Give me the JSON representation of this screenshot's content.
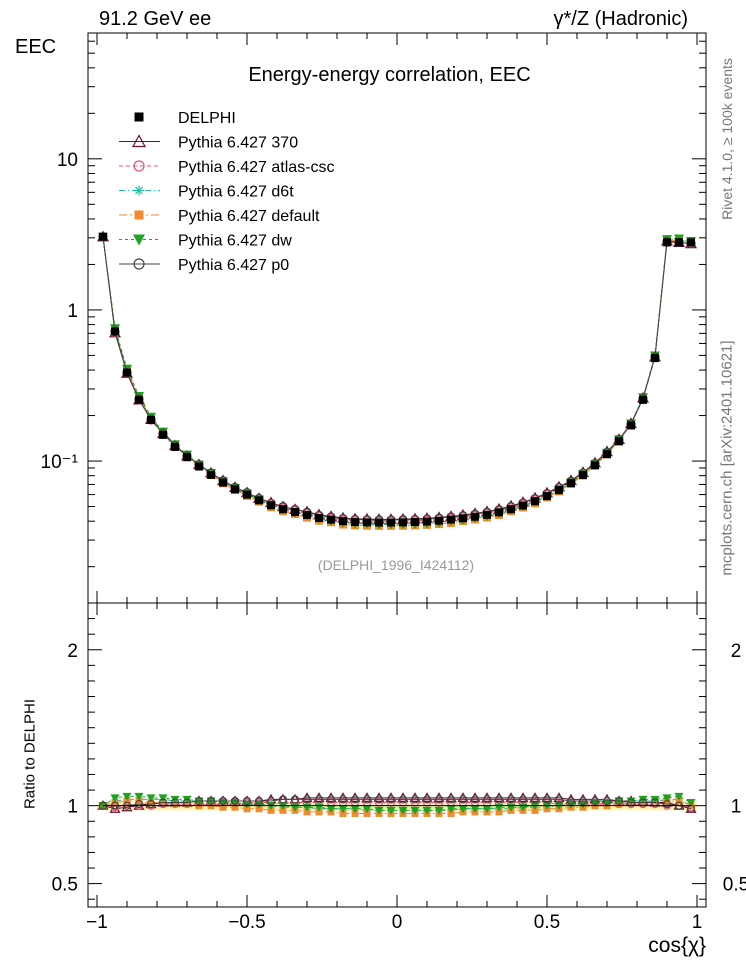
{
  "header": {
    "energy": "91.2 GeV ee",
    "process": "γ*/Z (Hadronic)"
  },
  "side_labels": {
    "rivet": "Rivet 4.1.0, ≥ 100k events",
    "mcplots": "mcplots.cern.ch [arXiv:2401.10621]"
  },
  "chart_data": {
    "type": "line",
    "title": "Energy-energy correlation, EEC",
    "analysis_id": "(DELPHI_1996_I424112)",
    "xlabel": "cos{χ}",
    "ylabel": "EEC",
    "ratio_ylabel": "Ratio to DELPHI",
    "xlim": [
      -1.03,
      1.03
    ],
    "ylim": [
      0.0115,
      68
    ],
    "yscale": "log",
    "ratio_ylim": [
      0.35,
      2.3
    ],
    "x_ticks": [
      -1,
      -0.5,
      0,
      0.5,
      1
    ],
    "x_tick_labels": [
      "−1",
      "−0.5",
      "0",
      "0.5",
      "1"
    ],
    "y_ticks": [
      0.1,
      1,
      10
    ],
    "y_tick_labels": [
      "10⁻¹",
      "1",
      "10"
    ],
    "ratio_y_ticks": [
      0.5,
      1,
      2
    ],
    "ratio_y_tick_labels": [
      "0.5",
      "1",
      "2"
    ],
    "x": [
      -0.98,
      -0.94,
      -0.9,
      -0.86,
      -0.82,
      -0.78,
      -0.74,
      -0.7,
      -0.66,
      -0.62,
      -0.58,
      -0.54,
      -0.5,
      -0.46,
      -0.42,
      -0.38,
      -0.34,
      -0.3,
      -0.26,
      -0.22,
      -0.18,
      -0.14,
      -0.1,
      -0.06,
      -0.02,
      0.02,
      0.06,
      0.1,
      0.14,
      0.18,
      0.22,
      0.26,
      0.3,
      0.34,
      0.38,
      0.42,
      0.46,
      0.5,
      0.54,
      0.58,
      0.62,
      0.66,
      0.7,
      0.74,
      0.78,
      0.82,
      0.86,
      0.9,
      0.94,
      0.98
    ],
    "reference": {
      "name": "DELPHI",
      "values": [
        3.05,
        0.72,
        0.385,
        0.254,
        0.187,
        0.149,
        0.124,
        0.106,
        0.092,
        0.081,
        0.072,
        0.065,
        0.06,
        0.055,
        0.051,
        0.048,
        0.046,
        0.044,
        0.042,
        0.041,
        0.04,
        0.0395,
        0.0393,
        0.0392,
        0.0392,
        0.0393,
        0.0395,
        0.0398,
        0.0403,
        0.041,
        0.0418,
        0.0428,
        0.0441,
        0.0458,
        0.048,
        0.0508,
        0.0542,
        0.0586,
        0.0642,
        0.0714,
        0.0809,
        0.0936,
        0.111,
        0.135,
        0.172,
        0.254,
        0.48,
        2.8,
        2.8,
        2.8
      ]
    },
    "series": [
      {
        "name": "Pythia 6.427 370",
        "color": "#6b0f2a",
        "marker": "triangle-open",
        "dash": "solid",
        "ratio": [
          1.0,
          0.98,
          0.99,
          1.0,
          1.01,
          1.02,
          1.02,
          1.02,
          1.03,
          1.03,
          1.03,
          1.03,
          1.03,
          1.03,
          1.04,
          1.04,
          1.04,
          1.05,
          1.05,
          1.05,
          1.05,
          1.05,
          1.05,
          1.05,
          1.05,
          1.05,
          1.05,
          1.05,
          1.05,
          1.05,
          1.05,
          1.05,
          1.05,
          1.05,
          1.05,
          1.05,
          1.05,
          1.05,
          1.05,
          1.04,
          1.04,
          1.04,
          1.04,
          1.03,
          1.03,
          1.03,
          1.02,
          1.02,
          1.0,
          0.98
        ]
      },
      {
        "name": "Pythia 6.427 atlas-csc",
        "color": "#e8507a",
        "marker": "circle-open",
        "dash": "4,3",
        "ratio": [
          1.0,
          0.99,
          1.0,
          1.0,
          1.0,
          1.01,
          1.01,
          1.01,
          1.01,
          1.01,
          1.01,
          1.01,
          1.02,
          1.02,
          1.02,
          1.02,
          1.02,
          1.02,
          1.02,
          1.02,
          1.02,
          1.02,
          1.02,
          1.02,
          1.02,
          1.02,
          1.02,
          1.02,
          1.02,
          1.02,
          1.02,
          1.02,
          1.02,
          1.02,
          1.02,
          1.02,
          1.02,
          1.02,
          1.01,
          1.01,
          1.01,
          1.01,
          1.01,
          1.01,
          1.01,
          1.01,
          1.01,
          1.0,
          1.0,
          0.99
        ]
      },
      {
        "name": "Pythia 6.427 d6t",
        "color": "#1fbfa0",
        "marker": "star",
        "dash": "6,3,1,3",
        "ratio": [
          1.0,
          1.03,
          1.04,
          1.04,
          1.04,
          1.04,
          1.03,
          1.03,
          1.03,
          1.02,
          1.02,
          1.01,
          1.01,
          1.0,
          1.0,
          0.99,
          0.99,
          0.99,
          0.98,
          0.98,
          0.98,
          0.98,
          0.97,
          0.97,
          0.97,
          0.97,
          0.97,
          0.97,
          0.97,
          0.97,
          0.98,
          0.98,
          0.98,
          0.98,
          0.98,
          0.99,
          0.99,
          0.99,
          1.0,
          1.0,
          1.01,
          1.01,
          1.02,
          1.02,
          1.03,
          1.03,
          1.03,
          1.04,
          1.04,
          1.0
        ]
      },
      {
        "name": "Pythia 6.427 default",
        "color": "#f28a2e",
        "marker": "square",
        "dash": "8,3,2,3",
        "ratio": [
          1.0,
          1.02,
          1.03,
          1.03,
          1.02,
          1.02,
          1.01,
          1.01,
          1.0,
          1.0,
          0.99,
          0.99,
          0.98,
          0.98,
          0.97,
          0.97,
          0.97,
          0.96,
          0.96,
          0.96,
          0.95,
          0.95,
          0.95,
          0.95,
          0.95,
          0.95,
          0.95,
          0.95,
          0.95,
          0.95,
          0.96,
          0.96,
          0.96,
          0.96,
          0.97,
          0.97,
          0.97,
          0.98,
          0.98,
          0.99,
          0.99,
          1.0,
          1.0,
          1.01,
          1.02,
          1.02,
          1.03,
          1.03,
          1.03,
          1.0
        ]
      },
      {
        "name": "Pythia 6.427 dw",
        "color": "#1fa31f",
        "marker": "triangle-down",
        "dash": "3,3",
        "ratio": [
          1.0,
          1.05,
          1.06,
          1.06,
          1.05,
          1.05,
          1.04,
          1.04,
          1.03,
          1.03,
          1.02,
          1.02,
          1.01,
          1.01,
          1.0,
          1.0,
          0.99,
          0.99,
          0.99,
          0.98,
          0.98,
          0.98,
          0.98,
          0.97,
          0.97,
          0.97,
          0.97,
          0.97,
          0.97,
          0.98,
          0.98,
          0.98,
          0.98,
          0.99,
          0.99,
          0.99,
          1.0,
          1.0,
          1.0,
          1.01,
          1.01,
          1.02,
          1.02,
          1.03,
          1.03,
          1.04,
          1.04,
          1.05,
          1.06,
          1.02
        ]
      },
      {
        "name": "Pythia 6.427 p0",
        "color": "#444444",
        "marker": "circle-open",
        "dash": "solid",
        "ratio": [
          1.0,
          1.0,
          1.0,
          1.01,
          1.01,
          1.02,
          1.02,
          1.02,
          1.03,
          1.03,
          1.03,
          1.03,
          1.03,
          1.03,
          1.03,
          1.04,
          1.04,
          1.04,
          1.04,
          1.04,
          1.04,
          1.04,
          1.04,
          1.04,
          1.04,
          1.04,
          1.04,
          1.04,
          1.04,
          1.04,
          1.04,
          1.04,
          1.04,
          1.04,
          1.04,
          1.04,
          1.04,
          1.04,
          1.04,
          1.03,
          1.03,
          1.03,
          1.03,
          1.03,
          1.02,
          1.02,
          1.02,
          1.01,
          1.0,
          0.98
        ]
      }
    ],
    "legend_position": "top-left"
  }
}
